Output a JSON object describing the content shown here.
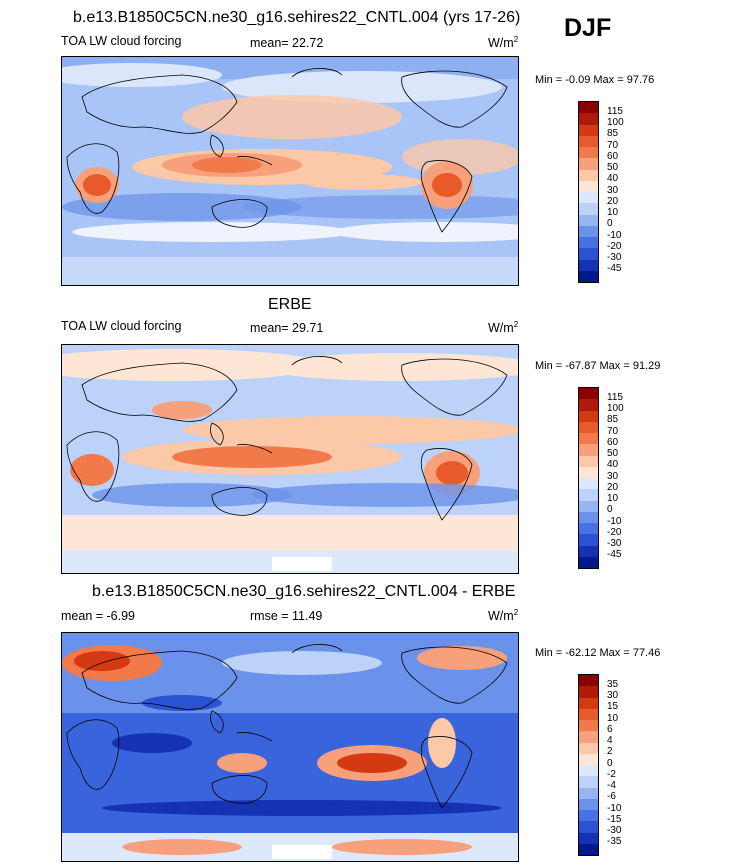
{
  "season": "DJF",
  "panels": [
    {
      "title": "b.e13.B1850C5CN.ne30_g16.sehires22_CNTL.004 (yrs 17-26)",
      "left_label": "TOA LW cloud forcing",
      "center_label": "mean=  22.72",
      "units_base": "W/m",
      "units_exp": "2",
      "minmax": "Min =  -0.09 Max =  97.76",
      "colorbar_labels": [
        "115",
        "100",
        "85",
        "70",
        "60",
        "50",
        "40",
        "30",
        "20",
        "10",
        "0",
        "-10",
        "-20",
        "-30",
        "-45"
      ]
    },
    {
      "title": "ERBE",
      "left_label": "TOA LW cloud forcing",
      "center_label": "mean=  29.71",
      "units_base": "W/m",
      "units_exp": "2",
      "minmax": "Min = -67.87 Max =  91.29",
      "colorbar_labels": [
        "115",
        "100",
        "85",
        "70",
        "60",
        "50",
        "40",
        "30",
        "20",
        "10",
        "0",
        "-10",
        "-20",
        "-30",
        "-45"
      ]
    },
    {
      "title": "b.e13.B1850C5CN.ne30_g16.sehires22_CNTL.004 - ERBE",
      "left_label": "mean =  -6.99",
      "center_label": "rmse =  11.49",
      "units_base": "W/m",
      "units_exp": "2",
      "minmax": "Min = -62.12 Max =  77.46",
      "colorbar_labels": [
        "35",
        "30",
        "15",
        "10",
        "6",
        "4",
        "2",
        "0",
        "-2",
        "-4",
        "-6",
        "-10",
        "-15",
        "-30",
        "-35"
      ]
    }
  ],
  "colors": {
    "colorbar": [
      "#8b0000",
      "#b01a08",
      "#d33a12",
      "#e85a2a",
      "#f27a4a",
      "#f7a07c",
      "#fbc8a8",
      "#fde6d6",
      "#dde8fb",
      "#bcd2f8",
      "#94b4f2",
      "#6b92ea",
      "#4672e2",
      "#2a52d2",
      "#1632b4",
      "#001a8c"
    ],
    "land_outline": "#000000"
  }
}
